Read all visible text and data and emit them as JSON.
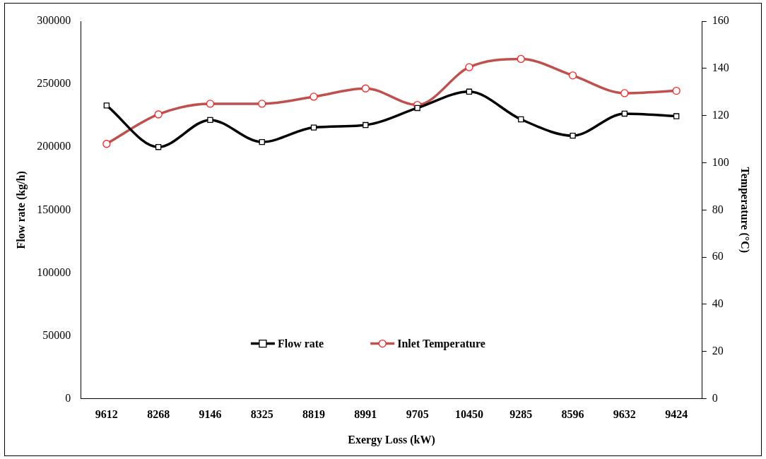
{
  "chart_data": {
    "type": "line",
    "xlabel": "Exergy Loss (kW)",
    "ylabel": "Flow rate (kg/h)",
    "y2label": "Temperature (°C)",
    "categories": [
      "9612",
      "8268",
      "9146",
      "8325",
      "8819",
      "8991",
      "9705",
      "10450",
      "9285",
      "8596",
      "9632",
      "9424"
    ],
    "series": [
      {
        "name": "Flow rate",
        "color": "#000000",
        "marker": "square",
        "values": [
          233000,
          200000,
          221500,
          204000,
          215500,
          217500,
          231000,
          244000,
          222000,
          209000,
          226500,
          224500
        ]
      },
      {
        "name": "Inlet Temperature",
        "color": "#c0504d",
        "marker": "circle",
        "axis": "y2",
        "values": [
          108,
          120.5,
          125,
          125,
          128,
          131.5,
          124.5,
          140.5,
          144,
          137,
          129.5,
          130.5
        ]
      }
    ],
    "ylim": [
      0,
      300000
    ],
    "yticks": [
      0,
      50000,
      100000,
      150000,
      200000,
      250000,
      300000
    ],
    "y2lim": [
      0,
      160
    ],
    "y2ticks": [
      0,
      20,
      40,
      60,
      80,
      100,
      120,
      140,
      160
    ],
    "grid": false,
    "legend": "bottom"
  }
}
